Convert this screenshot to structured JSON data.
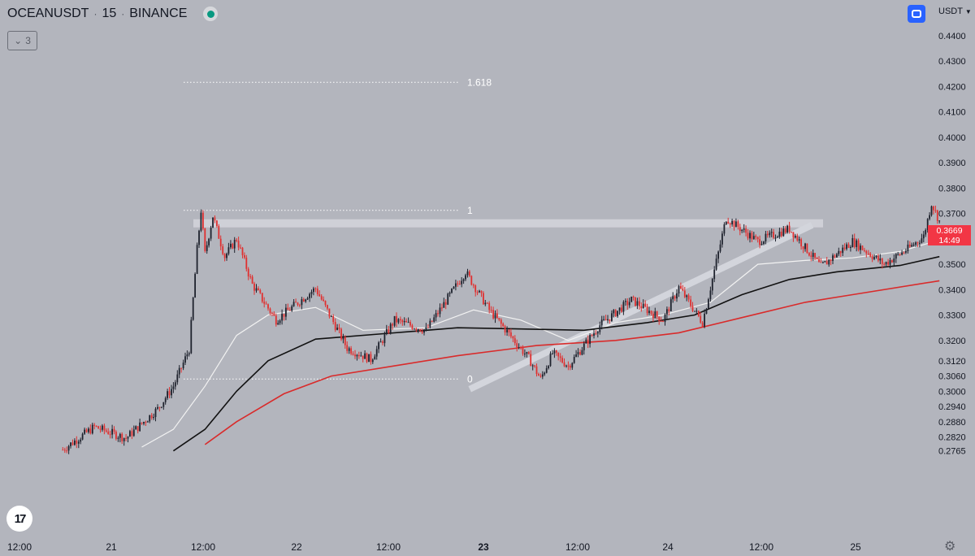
{
  "header": {
    "symbol": "OCEANUSDT",
    "interval": "15",
    "exchange": "BINANCE",
    "separator": "·",
    "collapse_count": "3",
    "currency": "USDT"
  },
  "price_label": {
    "value": "0.3669",
    "countdown": "14:49"
  },
  "colors": {
    "background": "#b3b5bd",
    "up_candle": "#1e222d",
    "down_candle": "#e03030",
    "ma_fast": "#f2f2f2",
    "ma_mid": "#111111",
    "ma_slow": "#d92b2b",
    "fib_line": "#ffffff",
    "zone": "#d3d5dc",
    "price_badge": "#f23645",
    "accent": "#2962ff"
  },
  "chart_data": {
    "type": "candlestick",
    "price_axis_labels": [
      "0.4400",
      "0.4300",
      "0.4200",
      "0.4100",
      "0.4000",
      "0.3900",
      "0.3800",
      "0.3700",
      "0.3600",
      "0.3500",
      "0.3400",
      "0.3300",
      "0.3200",
      "0.3120",
      "0.3060",
      "0.3000",
      "0.2940",
      "0.2880",
      "0.2820",
      "0.2765"
    ],
    "time_axis_labels": [
      {
        "label": "12:00",
        "bold": false
      },
      {
        "label": "21",
        "bold": false
      },
      {
        "label": "12:00",
        "bold": false
      },
      {
        "label": "22",
        "bold": false
      },
      {
        "label": "12:00",
        "bold": false
      },
      {
        "label": "23",
        "bold": true
      },
      {
        "label": "12:00",
        "bold": false
      },
      {
        "label": "24",
        "bold": false
      },
      {
        "label": "12:00",
        "bold": false
      },
      {
        "label": "25",
        "bold": false
      }
    ],
    "fib_levels": [
      {
        "label": "1.618",
        "price": 0.4216
      },
      {
        "label": "1",
        "price": 0.3712
      },
      {
        "label": "0",
        "price": 0.3048
      }
    ],
    "resistance_zone": 0.3661,
    "trendline": {
      "from": {
        "time": "23 00:00",
        "price": 0.3005
      },
      "to": {
        "time": "24 14:00",
        "price": 0.3635
      }
    },
    "candle_path": [
      {
        "time": "20 18:00",
        "price": 0.277
      },
      {
        "time": "20 22:00",
        "price": 0.286
      },
      {
        "time": "21 02:00",
        "price": 0.2815
      },
      {
        "time": "21 06:00",
        "price": 0.293
      },
      {
        "time": "21 08:00",
        "price": 0.302
      },
      {
        "time": "21 10:00",
        "price": 0.3165
      },
      {
        "time": "21 11:00",
        "price": 0.356
      },
      {
        "time": "21 11:30",
        "price": 0.3712
      },
      {
        "time": "21 12:00",
        "price": 0.354
      },
      {
        "time": "21 13:00",
        "price": 0.369
      },
      {
        "time": "21 14:30",
        "price": 0.353
      },
      {
        "time": "21 16:00",
        "price": 0.36
      },
      {
        "time": "21 18:00",
        "price": 0.342
      },
      {
        "time": "21 21:00",
        "price": 0.328
      },
      {
        "time": "22 02:00",
        "price": 0.3405
      },
      {
        "time": "22 06:00",
        "price": 0.317
      },
      {
        "time": "22 09:00",
        "price": 0.3125
      },
      {
        "time": "22 12:00",
        "price": 0.328
      },
      {
        "time": "22 16:00",
        "price": 0.324
      },
      {
        "time": "22 21:00",
        "price": 0.347
      },
      {
        "time": "23 00:00",
        "price": 0.332
      },
      {
        "time": "23 05:00",
        "price": 0.313
      },
      {
        "time": "23 06:30",
        "price": 0.3048
      },
      {
        "time": "23 08:00",
        "price": 0.315
      },
      {
        "time": "23 10:00",
        "price": 0.31
      },
      {
        "time": "23 14:00",
        "price": 0.326
      },
      {
        "time": "23 18:00",
        "price": 0.336
      },
      {
        "time": "23 22:00",
        "price": 0.328
      },
      {
        "time": "24 00:00",
        "price": 0.341
      },
      {
        "time": "24 03:00",
        "price": 0.327
      },
      {
        "time": "24 06:00",
        "price": 0.3682
      },
      {
        "time": "24 10:00",
        "price": 0.359
      },
      {
        "time": "24 14:00",
        "price": 0.364
      },
      {
        "time": "24 18:00",
        "price": 0.349
      },
      {
        "time": "24 22:00",
        "price": 0.359
      },
      {
        "time": "25 02:00",
        "price": 0.35
      },
      {
        "time": "25 05:00",
        "price": 0.356
      },
      {
        "time": "25 07:00",
        "price": 0.361
      },
      {
        "time": "25 08:00",
        "price": 0.374
      },
      {
        "time": "25 09:00",
        "price": 0.3669
      }
    ],
    "moving_averages": [
      {
        "color": "white",
        "points": [
          {
            "time": "21 04:00",
            "price": 0.278
          },
          {
            "time": "21 08:00",
            "price": 0.285
          },
          {
            "time": "21 12:00",
            "price": 0.302
          },
          {
            "time": "21 16:00",
            "price": 0.322
          },
          {
            "time": "21 20:00",
            "price": 0.33
          },
          {
            "time": "22 02:00",
            "price": 0.333
          },
          {
            "time": "22 08:00",
            "price": 0.324
          },
          {
            "time": "22 16:00",
            "price": 0.325
          },
          {
            "time": "22 22:00",
            "price": 0.332
          },
          {
            "time": "23 04:00",
            "price": 0.328
          },
          {
            "time": "23 10:00",
            "price": 0.32
          },
          {
            "time": "23 16:00",
            "price": 0.327
          },
          {
            "time": "23 22:00",
            "price": 0.33
          },
          {
            "time": "24 04:00",
            "price": 0.335
          },
          {
            "time": "24 10:00",
            "price": 0.35
          },
          {
            "time": "24 16:00",
            "price": 0.3515
          },
          {
            "time": "24 22:00",
            "price": 0.3525
          },
          {
            "time": "25 04:00",
            "price": 0.355
          },
          {
            "time": "25 09:00",
            "price": 0.3595
          }
        ]
      },
      {
        "color": "black",
        "points": [
          {
            "time": "21 08:00",
            "price": 0.2765
          },
          {
            "time": "21 12:00",
            "price": 0.285
          },
          {
            "time": "21 16:00",
            "price": 0.3
          },
          {
            "time": "21 20:00",
            "price": 0.312
          },
          {
            "time": "22 02:00",
            "price": 0.3205
          },
          {
            "time": "22 10:00",
            "price": 0.3225
          },
          {
            "time": "22 20:00",
            "price": 0.325
          },
          {
            "time": "23 04:00",
            "price": 0.3245
          },
          {
            "time": "23 12:00",
            "price": 0.324
          },
          {
            "time": "23 20:00",
            "price": 0.327
          },
          {
            "time": "24 02:00",
            "price": 0.33
          },
          {
            "time": "24 08:00",
            "price": 0.338
          },
          {
            "time": "24 14:00",
            "price": 0.344
          },
          {
            "time": "24 20:00",
            "price": 0.347
          },
          {
            "time": "25 04:00",
            "price": 0.3495
          },
          {
            "time": "25 09:00",
            "price": 0.353
          }
        ]
      },
      {
        "color": "red",
        "points": [
          {
            "time": "21 12:00",
            "price": 0.279
          },
          {
            "time": "21 16:00",
            "price": 0.288
          },
          {
            "time": "21 22:00",
            "price": 0.299
          },
          {
            "time": "22 04:00",
            "price": 0.306
          },
          {
            "time": "22 12:00",
            "price": 0.31
          },
          {
            "time": "22 20:00",
            "price": 0.314
          },
          {
            "time": "23 06:00",
            "price": 0.318
          },
          {
            "time": "23 16:00",
            "price": 0.32
          },
          {
            "time": "24 00:00",
            "price": 0.323
          },
          {
            "time": "24 08:00",
            "price": 0.329
          },
          {
            "time": "24 16:00",
            "price": 0.335
          },
          {
            "time": "24 22:00",
            "price": 0.338
          },
          {
            "time": "25 09:00",
            "price": 0.3435
          }
        ]
      }
    ]
  }
}
